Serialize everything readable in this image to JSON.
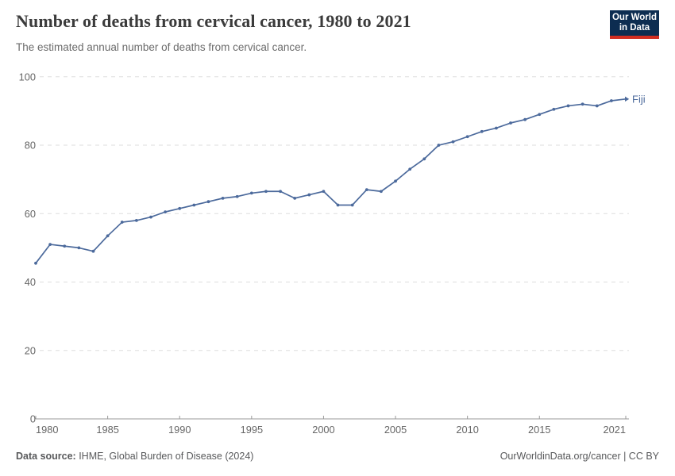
{
  "header": {
    "title": "Number of deaths from cervical cancer, 1980 to 2021",
    "subtitle": "The estimated annual number of deaths from cervical cancer.",
    "logo": {
      "line1": "Our World",
      "line2": "in Data",
      "bg_color": "#0d2d51",
      "bar_color": "#d22e21"
    }
  },
  "chart_data": {
    "type": "line",
    "title": "Number of deaths from cervical cancer, 1980 to 2021",
    "xlabel": "",
    "ylabel": "",
    "xlim": [
      1980,
      2021
    ],
    "ylim": [
      0,
      100
    ],
    "yticks": [
      0,
      20,
      40,
      60,
      80,
      100
    ],
    "xticks": [
      1980,
      1985,
      1990,
      1995,
      2000,
      2005,
      2010,
      2015,
      2021
    ],
    "grid": "horizontal-dashed",
    "legend_position": "end-of-line-label",
    "series": [
      {
        "name": "Fiji",
        "color": "#4C6A9C",
        "x": [
          1980,
          1981,
          1982,
          1983,
          1984,
          1985,
          1986,
          1987,
          1988,
          1989,
          1990,
          1991,
          1992,
          1993,
          1994,
          1995,
          1996,
          1997,
          1998,
          1999,
          2000,
          2001,
          2002,
          2003,
          2004,
          2005,
          2006,
          2007,
          2008,
          2009,
          2010,
          2011,
          2012,
          2013,
          2014,
          2015,
          2016,
          2017,
          2018,
          2019,
          2020,
          2021
        ],
        "values": [
          45.5,
          51,
          50.5,
          50,
          49,
          53.5,
          57.5,
          58,
          59,
          60.5,
          61.5,
          62.5,
          63.5,
          64.5,
          65,
          66,
          66.5,
          66.5,
          64.5,
          65.5,
          66.5,
          62.5,
          62.5,
          67,
          66.5,
          69.5,
          73,
          76,
          80,
          81,
          82.5,
          84,
          85,
          86.5,
          87.5,
          89,
          90.5,
          91.5,
          92,
          91.5,
          93,
          93.5
        ]
      }
    ]
  },
  "colors": {
    "line": "#4C6A9C",
    "grid": "#dddddd",
    "axis": "#9a9a9a",
    "tick_label": "#666666",
    "series_label": "#4C6A9C"
  },
  "footer": {
    "source_label": "Data source:",
    "source_text": " IHME, Global Burden of Disease (2024)",
    "credit": "OurWorldinData.org/cancer | CC BY"
  }
}
